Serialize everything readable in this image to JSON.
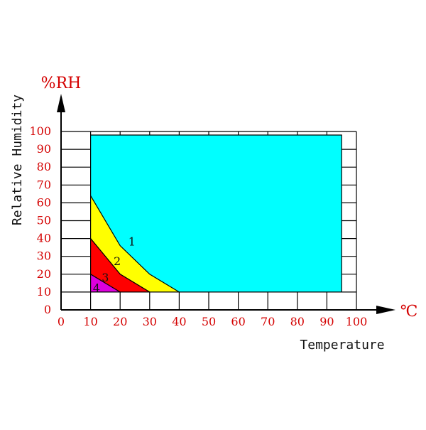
{
  "chart_data": {
    "type": "area",
    "xlabel": "Temperature",
    "ylabel": "Relative Humidity",
    "x_unit": "℃",
    "y_unit": "%RH",
    "xlim": [
      0,
      100
    ],
    "ylim": [
      0,
      100
    ],
    "x_ticks": [
      0,
      10,
      20,
      30,
      40,
      50,
      60,
      70,
      80,
      90,
      100
    ],
    "y_ticks": [
      0,
      10,
      20,
      30,
      40,
      50,
      60,
      70,
      80,
      90,
      100
    ],
    "grid": true,
    "series": [
      {
        "region": "overall",
        "color": "#00ffff",
        "polygon": [
          [
            10,
            98
          ],
          [
            95,
            98
          ],
          [
            95,
            10
          ],
          [
            10,
            10
          ]
        ]
      },
      {
        "name": "1",
        "color": "#ffff00",
        "polygon": [
          [
            10,
            64
          ],
          [
            20,
            36
          ],
          [
            30,
            20
          ],
          [
            40,
            10
          ],
          [
            10,
            10
          ]
        ],
        "label_at": [
          24,
          38
        ]
      },
      {
        "name": "2",
        "color": "#ff0000",
        "polygon": [
          [
            10,
            40
          ],
          [
            20,
            20
          ],
          [
            30,
            10
          ],
          [
            10,
            10
          ]
        ],
        "label_at": [
          19,
          27
        ]
      },
      {
        "name": "3",
        "color": "#ff0000",
        "polygon": [
          [
            10,
            40
          ],
          [
            20,
            20
          ],
          [
            30,
            10
          ],
          [
            10,
            10
          ]
        ],
        "label_at": [
          15,
          18
        ]
      },
      {
        "name": "4",
        "color": "#dd00dd",
        "polygon": [
          [
            10,
            20
          ],
          [
            20,
            10
          ],
          [
            10,
            10
          ]
        ],
        "label_at": [
          12,
          12
        ]
      }
    ]
  },
  "colors": {
    "tick": "#d40000",
    "grid": "#000000",
    "region_outline": "#000000"
  }
}
